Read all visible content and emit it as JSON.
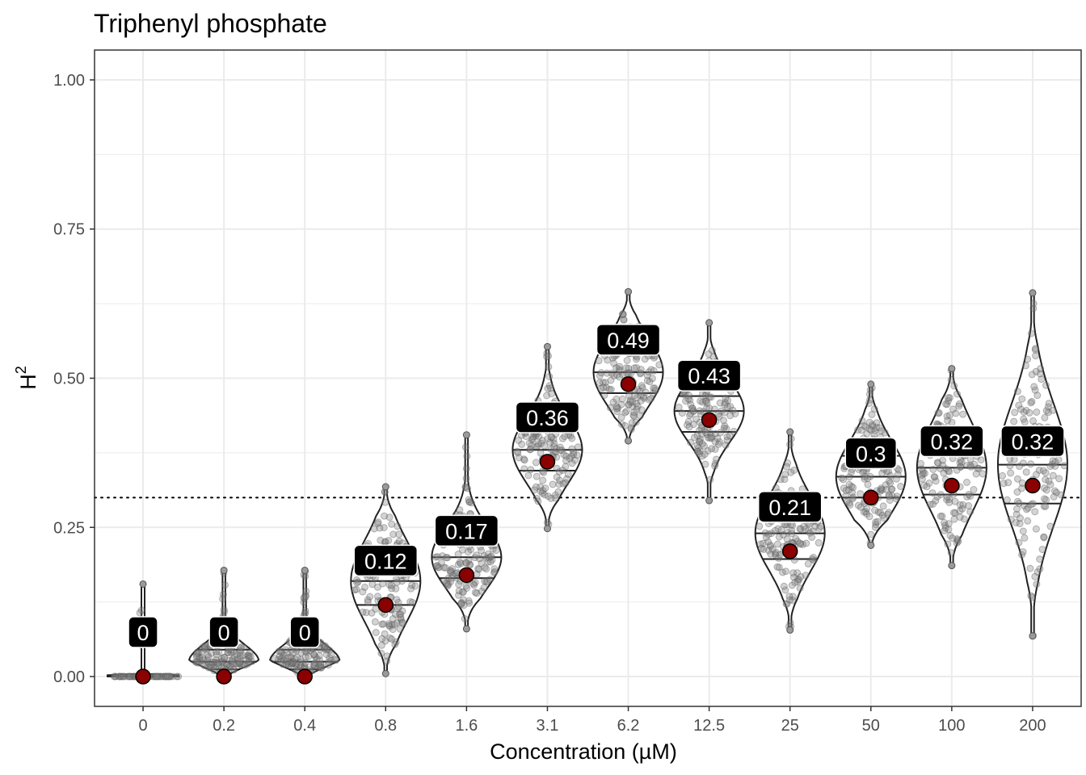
{
  "chart_data": {
    "type": "violin",
    "title": "Triphenyl phosphate",
    "xlabel": "Concentration (µM)",
    "ylabel": "H",
    "ylabel_superscript": "2",
    "categories": [
      "0",
      "0.2",
      "0.4",
      "0.8",
      "1.6",
      "3.1",
      "6.2",
      "12.5",
      "25",
      "50",
      "100",
      "200"
    ],
    "values": [
      0,
      0,
      0,
      0.12,
      0.17,
      0.36,
      0.49,
      0.43,
      0.21,
      0.3,
      0.32,
      0.32
    ],
    "value_labels": [
      "0",
      "0",
      "0",
      "0.12",
      "0.17",
      "0.36",
      "0.49",
      "0.43",
      "0.21",
      "0.3",
      "0.32",
      "0.32"
    ],
    "distributions": [
      {
        "min": 0.0,
        "max": 0.155,
        "q25": 0.0,
        "q50": 0.0,
        "q75": 0.0
      },
      {
        "min": 0.0,
        "max": 0.178,
        "q25": 0.012,
        "q50": 0.025,
        "q75": 0.045
      },
      {
        "min": 0.0,
        "max": 0.178,
        "q25": 0.012,
        "q50": 0.025,
        "q75": 0.045
      },
      {
        "min": 0.005,
        "max": 0.318,
        "q25": 0.12,
        "q50": 0.16,
        "q75": 0.2
      },
      {
        "min": 0.08,
        "max": 0.405,
        "q25": 0.165,
        "q50": 0.2,
        "q75": 0.225
      },
      {
        "min": 0.248,
        "max": 0.553,
        "q25": 0.345,
        "q50": 0.38,
        "q75": 0.41
      },
      {
        "min": 0.395,
        "max": 0.645,
        "q25": 0.475,
        "q50": 0.51,
        "q75": 0.54
      },
      {
        "min": 0.295,
        "max": 0.593,
        "q25": 0.41,
        "q50": 0.445,
        "q75": 0.47
      },
      {
        "min": 0.078,
        "max": 0.41,
        "q25": 0.197,
        "q50": 0.24,
        "q75": 0.27
      },
      {
        "min": 0.22,
        "max": 0.49,
        "q25": 0.3,
        "q50": 0.335,
        "q75": 0.37
      },
      {
        "min": 0.186,
        "max": 0.516,
        "q25": 0.305,
        "q50": 0.35,
        "q75": 0.39
      },
      {
        "min": 0.068,
        "max": 0.643,
        "q25": 0.29,
        "q50": 0.355,
        "q75": 0.41
      }
    ],
    "reference_line": 0.3,
    "ylim": [
      -0.05,
      1.05
    ],
    "yticks": [
      0,
      0.25,
      0.5,
      0.75,
      1.0
    ],
    "ytick_labels": [
      "0.00",
      "0.25",
      "0.50",
      "0.75",
      "1.00"
    ],
    "grid": true,
    "colors": {
      "points": "#808080",
      "mean_point": "#8b0000",
      "label_bg": "#000000",
      "label_text": "#ffffff",
      "grid": "#ebebeb"
    }
  }
}
